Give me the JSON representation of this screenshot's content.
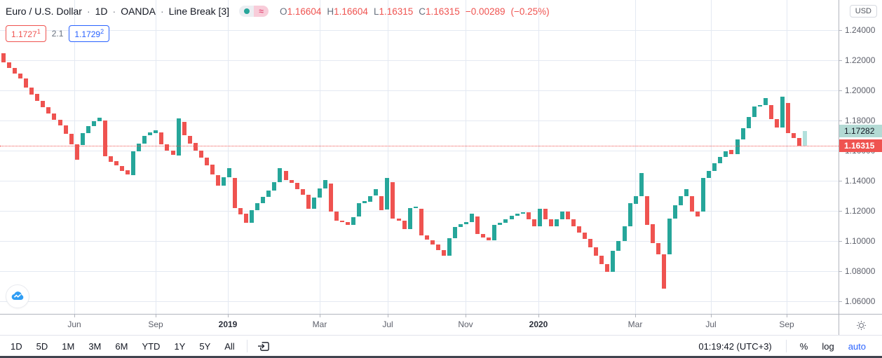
{
  "header": {
    "symbol_title": "Euro / U.S. Dollar",
    "separator": "·",
    "interval": "1D",
    "exchange": "OANDA",
    "chart_type": "Line Break [3]",
    "approx_glyph": "≈",
    "ohlc": {
      "open_label": "O",
      "open": "1.16604",
      "high_label": "H",
      "high": "1.16604",
      "low_label": "L",
      "low": "1.16315",
      "close_label": "C",
      "close": "1.16315",
      "change": "−0.00289",
      "change_pct": "(−0.25%)"
    },
    "bid": {
      "price": "1.1727",
      "pip": "1"
    },
    "spread": "2.1",
    "ask": {
      "price": "1.1729",
      "pip": "2"
    }
  },
  "price_axis": {
    "currency_label": "USD",
    "ticks": [
      {
        "label": "1.24000",
        "price": 1.24
      },
      {
        "label": "1.22000",
        "price": 1.22
      },
      {
        "label": "1.20000",
        "price": 1.2
      },
      {
        "label": "1.18000",
        "price": 1.18
      },
      {
        "label": "1.16000",
        "price": 1.16
      },
      {
        "label": "1.14000",
        "price": 1.14
      },
      {
        "label": "1.12000",
        "price": 1.12
      },
      {
        "label": "1.10000",
        "price": 1.1
      },
      {
        "label": "1.08000",
        "price": 1.08
      },
      {
        "label": "1.06000",
        "price": 1.06
      }
    ],
    "ask_tag": {
      "label": "1.17282",
      "price": 1.17282
    },
    "last_tag": {
      "label": "1.16315",
      "price": 1.16315
    }
  },
  "toolbar": {
    "ranges": [
      "1D",
      "5D",
      "1M",
      "3M",
      "6M",
      "YTD",
      "1Y",
      "5Y",
      "All"
    ],
    "clock": "01:19:42 (UTC+3)",
    "percent_label": "%",
    "log_label": "log",
    "auto_label": "auto"
  },
  "colors": {
    "up": "#26a69a",
    "down": "#ef5350",
    "projection": "rgba(38,166,154,0.35)",
    "accent_blue": "#2962ff"
  },
  "chart_data": {
    "type": "line-break-bars",
    "title": "Euro / U.S. Dollar, 1D, OANDA, Line Break [3]",
    "ylabel": "USD",
    "ylim": [
      1.055,
      1.245
    ],
    "grid": true,
    "last_close": 1.16315,
    "projected_close": 1.17282,
    "y_scale": {
      "p1": 1.16,
      "y1": 215,
      "p2": 1.18,
      "y2": 172
    },
    "layout": {
      "plot_left": 2,
      "pitch": 8.05,
      "brick_width": 6
    },
    "price_gridlines": [
      1.06,
      1.08,
      1.1,
      1.12,
      1.14,
      1.16,
      1.18,
      1.2,
      1.22,
      1.24
    ],
    "time_gridlines": [
      {
        "label": "Jun",
        "x": 106,
        "year": false
      },
      {
        "label": "Sep",
        "x": 222,
        "year": false
      },
      {
        "label": "2019",
        "x": 325,
        "year": true
      },
      {
        "label": "Mar",
        "x": 456,
        "year": false
      },
      {
        "label": "Jul",
        "x": 553,
        "year": false
      },
      {
        "label": "Nov",
        "x": 664,
        "year": false
      },
      {
        "label": "2020",
        "x": 768,
        "year": true
      },
      {
        "label": "Mar",
        "x": 906,
        "year": false
      },
      {
        "label": "Jul",
        "x": 1014,
        "year": false
      },
      {
        "label": "Sep",
        "x": 1122,
        "year": false
      }
    ],
    "bricks": [
      [
        1.2245,
        1.2185
      ],
      [
        1.2185,
        1.215
      ],
      [
        1.215,
        1.2112
      ],
      [
        1.2112,
        1.208
      ],
      [
        1.208,
        1.202
      ],
      [
        1.202,
        1.1975
      ],
      [
        1.1975,
        1.193
      ],
      [
        1.193,
        1.1888
      ],
      [
        1.1888,
        1.1848
      ],
      [
        1.1848,
        1.1805
      ],
      [
        1.1805,
        1.1768
      ],
      [
        1.1768,
        1.171
      ],
      [
        1.171,
        1.164
      ],
      [
        1.164,
        1.154
      ],
      [
        1.1637,
        1.1716
      ],
      [
        1.1716,
        1.1762
      ],
      [
        1.1762,
        1.1795
      ],
      [
        1.1795,
        1.182
      ],
      [
        1.18,
        1.1565
      ],
      [
        1.1565,
        1.153
      ],
      [
        1.153,
        1.15
      ],
      [
        1.15,
        1.1468
      ],
      [
        1.1468,
        1.1438
      ],
      [
        1.1438,
        1.1595
      ],
      [
        1.1595,
        1.1648
      ],
      [
        1.1648,
        1.17
      ],
      [
        1.17,
        1.172
      ],
      [
        1.172,
        1.1737
      ],
      [
        1.172,
        1.164
      ],
      [
        1.164,
        1.16
      ],
      [
        1.16,
        1.157
      ],
      [
        1.157,
        1.1815
      ],
      [
        1.179,
        1.17
      ],
      [
        1.17,
        1.165
      ],
      [
        1.165,
        1.16
      ],
      [
        1.16,
        1.1555
      ],
      [
        1.1555,
        1.1505
      ],
      [
        1.1505,
        1.1438
      ],
      [
        1.1438,
        1.137
      ],
      [
        1.137,
        1.1425
      ],
      [
        1.1425,
        1.1485
      ],
      [
        1.1419,
        1.122
      ],
      [
        1.122,
        1.118
      ],
      [
        1.118,
        1.112
      ],
      [
        1.112,
        1.1205
      ],
      [
        1.1205,
        1.125
      ],
      [
        1.125,
        1.1293
      ],
      [
        1.1293,
        1.1335
      ],
      [
        1.1335,
        1.139
      ],
      [
        1.139,
        1.1484
      ],
      [
        1.1465,
        1.1405
      ],
      [
        1.1405,
        1.1386
      ],
      [
        1.1386,
        1.1344
      ],
      [
        1.1344,
        1.1307
      ],
      [
        1.1307,
        1.1214
      ],
      [
        1.1214,
        1.1288
      ],
      [
        1.1288,
        1.135
      ],
      [
        1.135,
        1.1405
      ],
      [
        1.138,
        1.1196
      ],
      [
        1.1196,
        1.1135
      ],
      [
        1.1135,
        1.1126
      ],
      [
        1.1126,
        1.1107
      ],
      [
        1.1107,
        1.116
      ],
      [
        1.116,
        1.125
      ],
      [
        1.125,
        1.1265
      ],
      [
        1.1265,
        1.13
      ],
      [
        1.13,
        1.1344
      ],
      [
        1.13,
        1.1209
      ],
      [
        1.1209,
        1.1419
      ],
      [
        1.139,
        1.115
      ],
      [
        1.115,
        1.1135
      ],
      [
        1.1135,
        1.108
      ],
      [
        1.108,
        1.122
      ],
      [
        1.122,
        1.1228
      ],
      [
        1.1214,
        1.1035
      ],
      [
        1.1035,
        1.1005
      ],
      [
        1.1005,
        1.0977
      ],
      [
        1.0977,
        1.094
      ],
      [
        1.094,
        1.0902
      ],
      [
        1.0902,
        1.102
      ],
      [
        1.102,
        1.1093
      ],
      [
        1.1093,
        1.111
      ],
      [
        1.111,
        1.1126
      ],
      [
        1.1126,
        1.1181
      ],
      [
        1.1163,
        1.1047
      ],
      [
        1.1047,
        1.1023
      ],
      [
        1.1023,
        1.1005
      ],
      [
        1.1005,
        1.1107
      ],
      [
        1.1107,
        1.1121
      ],
      [
        1.1121,
        1.1144
      ],
      [
        1.1144,
        1.1167
      ],
      [
        1.1167,
        1.1181
      ],
      [
        1.1181,
        1.119
      ],
      [
        1.119,
        1.1144
      ],
      [
        1.1144,
        1.1098
      ],
      [
        1.1098,
        1.1214
      ],
      [
        1.1214,
        1.1144
      ],
      [
        1.1144,
        1.1098
      ],
      [
        1.1098,
        1.1144
      ],
      [
        1.1144,
        1.1195
      ],
      [
        1.1195,
        1.1144
      ],
      [
        1.1144,
        1.1098
      ],
      [
        1.1098,
        1.1056
      ],
      [
        1.1056,
        1.1014
      ],
      [
        1.1014,
        1.0958
      ],
      [
        1.0958,
        1.0902
      ],
      [
        1.0902,
        1.0846
      ],
      [
        1.0846,
        1.0795
      ],
      [
        1.0795,
        1.0935
      ],
      [
        1.0935,
        1.1
      ],
      [
        1.1,
        1.1098
      ],
      [
        1.1098,
        1.125
      ],
      [
        1.125,
        1.13
      ],
      [
        1.13,
        1.1452
      ],
      [
        1.13,
        1.111
      ],
      [
        1.111,
        1.0986
      ],
      [
        1.0986,
        1.0912
      ],
      [
        1.0912,
        1.0684
      ],
      [
        1.0912,
        1.1149
      ],
      [
        1.1149,
        1.1237
      ],
      [
        1.1237,
        1.1298
      ],
      [
        1.1298,
        1.1344
      ],
      [
        1.1298,
        1.1195
      ],
      [
        1.1195,
        1.1163
      ],
      [
        1.1195,
        1.1419
      ],
      [
        1.1419,
        1.1465
      ],
      [
        1.1465,
        1.1516
      ],
      [
        1.1516,
        1.156
      ],
      [
        1.156,
        1.1595
      ],
      [
        1.1605,
        1.1575
      ],
      [
        1.1575,
        1.1674
      ],
      [
        1.1674,
        1.1749
      ],
      [
        1.1749,
        1.1824
      ],
      [
        1.1824,
        1.1893
      ],
      [
        1.1893,
        1.1902
      ],
      [
        1.1902,
        1.1949
      ],
      [
        1.1902,
        1.1809
      ],
      [
        1.1809,
        1.1754
      ],
      [
        1.1754,
        1.1958
      ],
      [
        1.1916,
        1.1716
      ],
      [
        1.1716,
        1.1684
      ],
      [
        1.1684,
        1.16315
      ]
    ],
    "projection_brick": [
      1.16315,
      1.17282
    ]
  }
}
